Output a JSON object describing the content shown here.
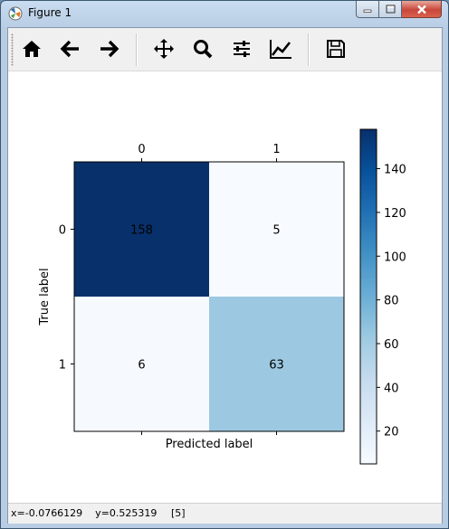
{
  "window": {
    "title": "Figure 1"
  },
  "toolbar": {
    "buttons": [
      {
        "name": "home",
        "icon": "home-icon"
      },
      {
        "name": "back",
        "icon": "arrow-left-icon"
      },
      {
        "name": "forward",
        "icon": "arrow-right-icon"
      },
      {
        "name": "pan",
        "icon": "move-icon"
      },
      {
        "name": "zoom",
        "icon": "magnifier-icon"
      },
      {
        "name": "subplots",
        "icon": "sliders-icon"
      },
      {
        "name": "edit-axes",
        "icon": "line-chart-icon"
      },
      {
        "name": "save",
        "icon": "floppy-disk-icon"
      }
    ]
  },
  "status": {
    "coords": "x=-0.0766129    y=0.525319",
    "value": "[5]"
  },
  "colors": {
    "dark": "#08306b",
    "light": "#f7fbff",
    "mid": "#9ecae1",
    "text": "#000000"
  },
  "chart_data": {
    "type": "heatmap",
    "title": "",
    "xlabel": "Predicted label",
    "ylabel": "True label",
    "x_categories": [
      "0",
      "1"
    ],
    "y_categories": [
      "0",
      "1"
    ],
    "values": [
      [
        158,
        5
      ],
      [
        6,
        63
      ]
    ],
    "cell_labels": [
      [
        "158",
        "5"
      ],
      [
        "6",
        "63"
      ]
    ],
    "colormap": "Blues",
    "xaxis_ticks_position": "top",
    "colorbar": {
      "ticks": [
        "20",
        "40",
        "60",
        "80",
        "100",
        "120",
        "140"
      ],
      "tick_values": [
        20,
        40,
        60,
        80,
        100,
        120,
        140
      ],
      "range": [
        5,
        158
      ]
    }
  }
}
